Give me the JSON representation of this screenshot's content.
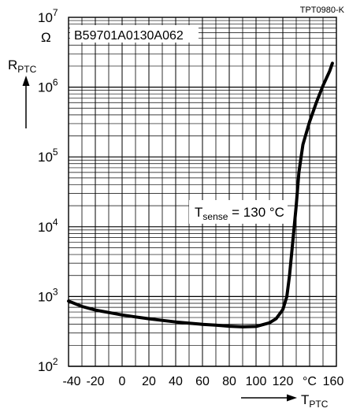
{
  "chart_data": {
    "type": "line",
    "figure_id": "TPT0980-K",
    "part_number": "B59701A0130A062",
    "y_unit": "Ω",
    "ylabel": {
      "main": "R",
      "sub": "PTC"
    },
    "xlabel": {
      "main": "T",
      "sub": "PTC"
    },
    "x_unit": "°C",
    "x_ticks": [
      "-40",
      "-20",
      "0",
      "20",
      "40",
      "60",
      "80",
      "100",
      "120",
      "°C",
      "160"
    ],
    "x_tick_values": [
      -40,
      -20,
      0,
      20,
      40,
      60,
      80,
      100,
      120,
      140,
      160
    ],
    "y_ticks": [
      {
        "base": "10",
        "exp": "2",
        "value": 100
      },
      {
        "base": "10",
        "exp": "3",
        "value": 1000
      },
      {
        "base": "10",
        "exp": "4",
        "value": 10000
      },
      {
        "base": "10",
        "exp": "5",
        "value": 100000
      },
      {
        "base": "10",
        "exp": "6",
        "value": 1000000
      },
      {
        "base": "10",
        "exp": "7",
        "value": 10000000
      }
    ],
    "xlim": [
      -40,
      160
    ],
    "ylim": [
      100,
      10000000
    ],
    "y_scale": "log",
    "grid": true,
    "annotation": {
      "main": "T",
      "sub": "sense",
      "rest": " = 130 °C"
    },
    "series": [
      {
        "x": [
          -40,
          -30,
          -20,
          -10,
          0,
          10,
          20,
          30,
          40,
          50,
          60,
          70,
          80,
          90,
          100,
          110,
          115,
          120,
          123,
          125,
          127,
          130,
          132,
          135,
          140,
          145,
          150,
          155,
          157
        ],
        "y": [
          860,
          720,
          640,
          590,
          545,
          510,
          480,
          455,
          432,
          415,
          400,
          388,
          375,
          368,
          372,
          420,
          480,
          650,
          1000,
          2000,
          5000,
          20000,
          60000,
          150000,
          320000,
          600000,
          1050000,
          1700000,
          2200000
        ]
      }
    ]
  }
}
